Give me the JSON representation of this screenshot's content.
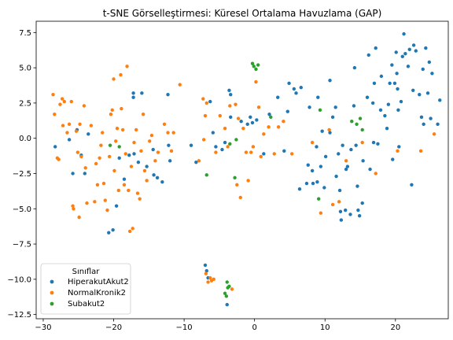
{
  "chart_data": {
    "type": "scatter",
    "title": "t-SNE Görselleştirmesi: Küresel Ortalama Havuzlama (GAP)",
    "xlabel": "",
    "ylabel": "",
    "xlim": [
      -31,
      27.5
    ],
    "ylim": [
      -12.8,
      8.3
    ],
    "x_ticks": [
      -30,
      -20,
      -10,
      0,
      10,
      20
    ],
    "x_tick_labels": [
      "−30",
      "−20",
      "−10",
      "0",
      "10",
      "20"
    ],
    "y_ticks": [
      -12.5,
      -10.0,
      -7.5,
      -5.0,
      -2.5,
      0.0,
      2.5,
      5.0,
      7.5
    ],
    "y_tick_labels": [
      "−12.5",
      "−10.0",
      "−7.5",
      "−5.0",
      "−2.5",
      "0.0",
      "2.5",
      "5.0",
      "7.5"
    ],
    "grid": false,
    "legend": {
      "title": "Sınıflar",
      "placement": "lower-left"
    },
    "series": [
      {
        "name": "HiperakutAkut2",
        "color": "#1f77b4",
        "points": [
          [
            -28.3,
            -0.6
          ],
          [
            -26.3,
            -0.1
          ],
          [
            -25.8,
            -2.5
          ],
          [
            -24.6,
            -1.2
          ],
          [
            -24.1,
            -2.5
          ],
          [
            -23.6,
            0.3
          ],
          [
            -25.2,
            0.6
          ],
          [
            -20.7,
            -6.7
          ],
          [
            -20.1,
            -6.5
          ],
          [
            -19.6,
            -4.8
          ],
          [
            -19.2,
            -1.4
          ],
          [
            -18.5,
            -2.9
          ],
          [
            -17.8,
            -1.2
          ],
          [
            -17.1,
            -1.1
          ],
          [
            -17.2,
            2.9
          ],
          [
            -17.2,
            3.2
          ],
          [
            -16.0,
            3.2
          ],
          [
            -16.5,
            -1.7
          ],
          [
            -15.3,
            -2.0
          ],
          [
            -14.4,
            -0.8
          ],
          [
            -14.3,
            -2.6
          ],
          [
            -13.8,
            -2.8
          ],
          [
            -13.1,
            -3.1
          ],
          [
            -12.3,
            3.1
          ],
          [
            -12.2,
            -0.5
          ],
          [
            -12.0,
            -1.6
          ],
          [
            -9.0,
            -0.5
          ],
          [
            -8.3,
            -1.7
          ],
          [
            -7.0,
            -9.0
          ],
          [
            -6.8,
            -9.4
          ],
          [
            -6.6,
            -9.9
          ],
          [
            -6.3,
            2.6
          ],
          [
            -5.9,
            0.4
          ],
          [
            -5.5,
            -0.6
          ],
          [
            -4.6,
            -0.8
          ],
          [
            -4.2,
            -0.3
          ],
          [
            -3.9,
            -11.8
          ],
          [
            -3.6,
            3.4
          ],
          [
            -3.4,
            3.1
          ],
          [
            -3.4,
            1.5
          ],
          [
            -1.9,
            1.2
          ],
          [
            -1.0,
            1.0
          ],
          [
            -0.6,
            1.5
          ],
          [
            -0.3,
            1.1
          ],
          [
            0.3,
            1.3
          ],
          [
            1.3,
            -1.1
          ],
          [
            2.1,
            1.7
          ],
          [
            3.3,
            2.9
          ],
          [
            4.2,
            -0.9
          ],
          [
            4.7,
            1.9
          ],
          [
            4.9,
            3.9
          ],
          [
            5.6,
            3.5
          ],
          [
            5.9,
            3.2
          ],
          [
            6.4,
            -3.6
          ],
          [
            6.6,
            3.6
          ],
          [
            7.4,
            -3.2
          ],
          [
            7.6,
            -1.9
          ],
          [
            7.8,
            2.2
          ],
          [
            8.2,
            -2.3
          ],
          [
            8.3,
            -3.2
          ],
          [
            8.8,
            -0.6
          ],
          [
            8.9,
            -3.1
          ],
          [
            9.0,
            2.9
          ],
          [
            9.4,
            -2.0
          ],
          [
            9.6,
            0.5
          ],
          [
            9.9,
            -3.5
          ],
          [
            10.1,
            -1.3
          ],
          [
            10.7,
            4.1
          ],
          [
            10.7,
            0.4
          ],
          [
            11.1,
            1.5
          ],
          [
            11.5,
            2.2
          ],
          [
            11.6,
            -2.7
          ],
          [
            11.9,
            -1.1
          ],
          [
            12.1,
            -3.7
          ],
          [
            12.2,
            -5.2
          ],
          [
            12.3,
            -5.8
          ],
          [
            12.5,
            -0.5
          ],
          [
            12.9,
            -5.1
          ],
          [
            13.0,
            -2.2
          ],
          [
            13.2,
            -2.0
          ],
          [
            13.6,
            -5.4
          ],
          [
            13.7,
            -0.8
          ],
          [
            14.1,
            2.3
          ],
          [
            14.2,
            5.0
          ],
          [
            14.4,
            -0.5
          ],
          [
            14.6,
            -3.4
          ],
          [
            14.7,
            -5.1
          ],
          [
            14.9,
            -5.5
          ],
          [
            15.3,
            -4.6
          ],
          [
            15.4,
            -1.6
          ],
          [
            16.0,
            2.9
          ],
          [
            16.2,
            5.9
          ],
          [
            16.4,
            -2.2
          ],
          [
            16.9,
            -0.3
          ],
          [
            17.0,
            3.9
          ],
          [
            17.2,
            6.4
          ],
          [
            17.5,
            -0.4
          ],
          [
            17.9,
            2.0
          ],
          [
            18.5,
            1.6
          ],
          [
            18.8,
            0.7
          ],
          [
            19.0,
            2.4
          ],
          [
            19.2,
            3.9
          ],
          [
            19.5,
            5.2
          ],
          [
            19.6,
            -1.5
          ],
          [
            19.9,
            3.9
          ],
          [
            20.1,
            6.1
          ],
          [
            20.2,
            4.6
          ],
          [
            20.3,
            3.5
          ],
          [
            20.4,
            2.0
          ],
          [
            20.5,
            -0.6
          ],
          [
            20.8,
            2.6
          ],
          [
            21.0,
            5.8
          ],
          [
            21.2,
            7.4
          ],
          [
            21.4,
            6.0
          ],
          [
            21.8,
            5.1
          ],
          [
            22.0,
            6.3
          ],
          [
            22.3,
            -3.3
          ],
          [
            22.5,
            3.4
          ],
          [
            22.6,
            6.6
          ],
          [
            22.9,
            6.2
          ],
          [
            23.4,
            3.1
          ],
          [
            23.7,
            1.5
          ],
          [
            23.9,
            4.9
          ],
          [
            24.0,
            1.0
          ],
          [
            24.3,
            6.4
          ],
          [
            24.6,
            3.2
          ],
          [
            24.8,
            5.4
          ],
          [
            25.0,
            1.4
          ],
          [
            25.2,
            4.6
          ],
          [
            26.0,
            1.0
          ],
          [
            26.3,
            2.7
          ],
          [
            16.8,
            2.5
          ],
          [
            18.0,
            4.4
          ]
        ]
      },
      {
        "name": "NormalKronik2",
        "color": "#ff7f0e",
        "points": [
          [
            -28.6,
            3.1
          ],
          [
            -28.4,
            1.7
          ],
          [
            -28.0,
            -1.4
          ],
          [
            -27.8,
            -1.5
          ],
          [
            -27.6,
            2.4
          ],
          [
            -27.2,
            0.9
          ],
          [
            -27.0,
            2.6
          ],
          [
            -26.6,
            0.4
          ],
          [
            -26.3,
            1.0
          ],
          [
            -26.0,
            2.6
          ],
          [
            -25.8,
            -4.8
          ],
          [
            -25.7,
            -5.0
          ],
          [
            -25.3,
            0.5
          ],
          [
            -25.1,
            -1.0
          ],
          [
            -24.9,
            -5.6
          ],
          [
            -24.8,
            1.0
          ],
          [
            -24.6,
            -1.3
          ],
          [
            -24.2,
            2.3
          ],
          [
            -24.0,
            -2.1
          ],
          [
            -23.8,
            -4.6
          ],
          [
            -23.2,
            0.9
          ],
          [
            -22.7,
            -4.5
          ],
          [
            -22.5,
            -1.8
          ],
          [
            -22.3,
            -3.3
          ],
          [
            -22.0,
            -1.4
          ],
          [
            -21.8,
            -0.5
          ],
          [
            -21.6,
            0.4
          ],
          [
            -21.4,
            -3.2
          ],
          [
            -21.2,
            -4.4
          ],
          [
            -20.9,
            -5.1
          ],
          [
            -20.6,
            -1.3
          ],
          [
            -20.4,
            1.7
          ],
          [
            -20.2,
            2.0
          ],
          [
            -20.0,
            4.2
          ],
          [
            -19.9,
            -2.3
          ],
          [
            -19.7,
            -0.2
          ],
          [
            -19.5,
            0.7
          ],
          [
            -19.3,
            -3.7
          ],
          [
            -19.0,
            4.5
          ],
          [
            -18.9,
            2.1
          ],
          [
            -18.7,
            0.6
          ],
          [
            -18.5,
            -3.3
          ],
          [
            -18.3,
            -1.1
          ],
          [
            -18.1,
            5.1
          ],
          [
            -17.9,
            -3.7
          ],
          [
            -17.7,
            -6.6
          ],
          [
            -17.5,
            -2.0
          ],
          [
            -17.3,
            -6.4
          ],
          [
            -17.1,
            -0.3
          ],
          [
            -16.8,
            0.6
          ],
          [
            -16.6,
            -3.9
          ],
          [
            -16.3,
            -4.3
          ],
          [
            -16.1,
            -0.9
          ],
          [
            -15.8,
            1.7
          ],
          [
            -15.6,
            -2.3
          ],
          [
            -15.3,
            -3.0
          ],
          [
            -14.9,
            -0.2
          ],
          [
            -14.6,
            0.2
          ],
          [
            -14.1,
            -1.6
          ],
          [
            -13.7,
            -1.0
          ],
          [
            -12.8,
            1.0
          ],
          [
            -12.3,
            0.4
          ],
          [
            -11.8,
            -0.9
          ],
          [
            -11.5,
            0.4
          ],
          [
            -10.6,
            3.8
          ],
          [
            -7.9,
            -1.6
          ],
          [
            -7.3,
            2.8
          ],
          [
            -7.2,
            -0.1
          ],
          [
            -7.0,
            1.6
          ],
          [
            -6.9,
            -9.6
          ],
          [
            -6.8,
            2.5
          ],
          [
            -6.6,
            -10.2
          ],
          [
            -6.3,
            -9.9
          ],
          [
            -6.1,
            -10.1
          ],
          [
            -5.8,
            -10.0
          ],
          [
            -5.5,
            -1.0
          ],
          [
            -4.9,
            1.6
          ],
          [
            -4.2,
            0.7
          ],
          [
            -3.8,
            -0.6
          ],
          [
            -3.5,
            2.3
          ],
          [
            -3.2,
            -10.7
          ],
          [
            -2.7,
            2.4
          ],
          [
            -2.5,
            -3.3
          ],
          [
            -2.3,
            1.4
          ],
          [
            -2.0,
            -4.2
          ],
          [
            -1.6,
            0.7
          ],
          [
            -1.2,
            -1.0
          ],
          [
            -0.9,
            -3.0
          ],
          [
            -0.5,
            -1.0
          ],
          [
            -0.2,
            -0.6
          ],
          [
            0.2,
            4.0
          ],
          [
            0.6,
            2.2
          ],
          [
            0.9,
            -1.3
          ],
          [
            1.3,
            0.3
          ],
          [
            2.0,
            0.8
          ],
          [
            2.8,
            -1.1
          ],
          [
            3.4,
            0.8
          ],
          [
            4.1,
            1.2
          ],
          [
            5.3,
            -1.1
          ],
          [
            8.2,
            -0.3
          ],
          [
            9.4,
            -5.3
          ],
          [
            10.6,
            0.6
          ],
          [
            11.1,
            -4.7
          ],
          [
            12.0,
            -4.5
          ],
          [
            13.0,
            -1.6
          ],
          [
            15.3,
            -0.3
          ],
          [
            17.2,
            -2.5
          ],
          [
            20.3,
            -0.9
          ],
          [
            23.6,
            -0.9
          ],
          [
            25.5,
            0.3
          ],
          [
            -27.3,
            2.8
          ]
        ]
      },
      {
        "name": "Subakut2",
        "color": "#2ca02c",
        "points": [
          [
            -20.5,
            -0.5
          ],
          [
            -19.2,
            -0.6
          ],
          [
            -6.8,
            -2.6
          ],
          [
            -4.2,
            -11.0
          ],
          [
            -4.0,
            -11.2
          ],
          [
            -3.9,
            -10.2
          ],
          [
            -3.8,
            -10.6
          ],
          [
            -3.6,
            -10.5
          ],
          [
            -3.5,
            -0.4
          ],
          [
            -2.8,
            -2.8
          ],
          [
            -2.6,
            -0.1
          ],
          [
            -0.3,
            5.3
          ],
          [
            -0.1,
            5.1
          ],
          [
            0.2,
            4.9
          ],
          [
            0.5,
            5.2
          ],
          [
            2.3,
            1.5
          ],
          [
            9.3,
            2.0
          ],
          [
            9.1,
            -4.3
          ],
          [
            13.8,
            1.2
          ],
          [
            14.5,
            1.0
          ],
          [
            15.0,
            1.4
          ],
          [
            15.3,
            0.6
          ]
        ]
      }
    ]
  }
}
